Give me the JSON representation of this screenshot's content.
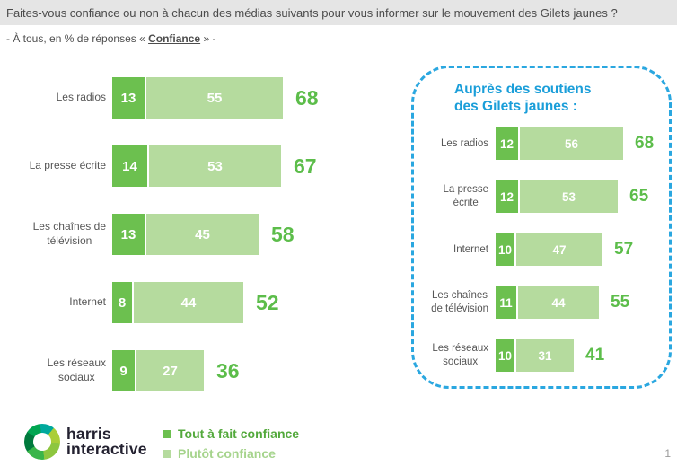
{
  "palette": {
    "dark_green": "#6cc04f",
    "light_green": "#b5db9e",
    "total_green": "#5cbd4a",
    "panel_blue": "#2aa7e0",
    "title_blue": "#1a9ed9"
  },
  "header": {
    "title": "Faites-vous confiance ou non à chacun des médias suivants pour vous informer sur le mouvement des Gilets jaunes ?",
    "subtitle_prefix": "- À tous, en % de réponses « ",
    "subtitle_emphasis": "Confiance",
    "subtitle_suffix": " » -"
  },
  "chart_data": [
    {
      "type": "bar",
      "orientation": "horizontal",
      "stacked": true,
      "categories": [
        "Les radios",
        "La presse écrite",
        "Les chaînes de\ntélévision",
        "Internet",
        "Les réseaux\nsociaux"
      ],
      "series": [
        {
          "name": "Tout à fait confiance",
          "color": "#6cc04f",
          "values": [
            13,
            14,
            13,
            8,
            9
          ]
        },
        {
          "name": "Plutôt confiance",
          "color": "#b5db9e",
          "values": [
            55,
            53,
            45,
            44,
            27
          ]
        }
      ],
      "totals": [
        68,
        67,
        58,
        52,
        36
      ],
      "xlim": [
        0,
        100
      ],
      "grid": false,
      "legend_position": "bottom"
    },
    {
      "type": "bar",
      "orientation": "horizontal",
      "stacked": true,
      "title": "Auprès des soutiens des Gilets jaunes :",
      "categories": [
        "Les radios",
        "La presse\nécrite",
        "Internet",
        "Les chaînes\nde télévision",
        "Les réseaux\nsociaux"
      ],
      "series": [
        {
          "name": "Tout à fait confiance",
          "color": "#6cc04f",
          "values": [
            12,
            12,
            10,
            11,
            10
          ]
        },
        {
          "name": "Plutôt confiance",
          "color": "#b5db9e",
          "values": [
            56,
            53,
            47,
            44,
            31
          ]
        }
      ],
      "totals": [
        68,
        65,
        57,
        55,
        41
      ],
      "xlim": [
        0,
        100
      ],
      "grid": false
    }
  ],
  "panel": {
    "title": "Auprès des soutiens des Gilets jaunes :"
  },
  "legend": {
    "items": [
      {
        "label": "Tout à fait confiance",
        "color": "#6cc04f",
        "text_color": "#53a93c"
      },
      {
        "label": "Plutôt confiance",
        "color": "#b5db9e",
        "text_color": "#a6d48d"
      }
    ]
  },
  "logo": {
    "line1": "harris",
    "line2": "interactive"
  },
  "page_number": "1"
}
